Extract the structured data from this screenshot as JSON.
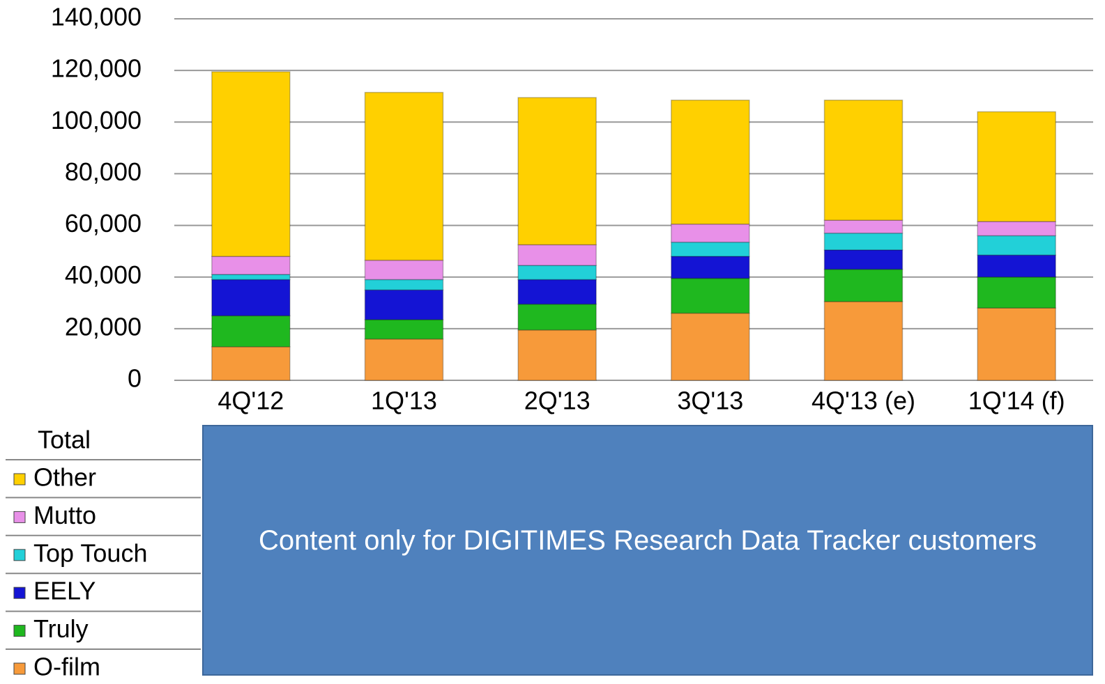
{
  "chart_data": {
    "type": "stacked_bar",
    "categories": [
      "4Q'12",
      "1Q'13",
      "2Q'13",
      "3Q'13",
      "4Q'13 (e)",
      "1Q'14 (f)"
    ],
    "series": [
      {
        "name": "O-film",
        "color": "#f79a3a",
        "values": [
          13000,
          16000,
          19500,
          26000,
          30500,
          28000
        ]
      },
      {
        "name": "Truly",
        "color": "#1fb81f",
        "values": [
          12000,
          7500,
          10000,
          13500,
          12500,
          12000
        ]
      },
      {
        "name": "EELY",
        "color": "#1414d4",
        "values": [
          14000,
          11500,
          9500,
          8500,
          7500,
          8500
        ]
      },
      {
        "name": "Top Touch",
        "color": "#22d0d8",
        "values": [
          2000,
          4000,
          5500,
          5500,
          6500,
          7500
        ]
      },
      {
        "name": "Mutto",
        "color": "#e890e8",
        "values": [
          7000,
          7500,
          8000,
          7000,
          5000,
          5500
        ]
      },
      {
        "name": "Other",
        "color": "#ffd000",
        "values": [
          71500,
          65000,
          57000,
          48000,
          46500,
          42500
        ]
      }
    ],
    "ylim": [
      0,
      140000
    ],
    "yticks": [
      0,
      {
        "value": 20000,
        "label": "20,000"
      },
      {
        "value": 40000,
        "label": "40,000"
      },
      {
        "value": 60000,
        "label": "60,000"
      },
      {
        "value": 80000,
        "label": "80,000"
      },
      {
        "value": 100000,
        "label": "100,000"
      },
      {
        "value": 120000,
        "label": "120,000"
      },
      {
        "value": 140000,
        "label": "140,000"
      }
    ],
    "grid": true,
    "table_header": "Total",
    "overlay_text": "Content only for DIGITIMES Research Data Tracker customers"
  }
}
